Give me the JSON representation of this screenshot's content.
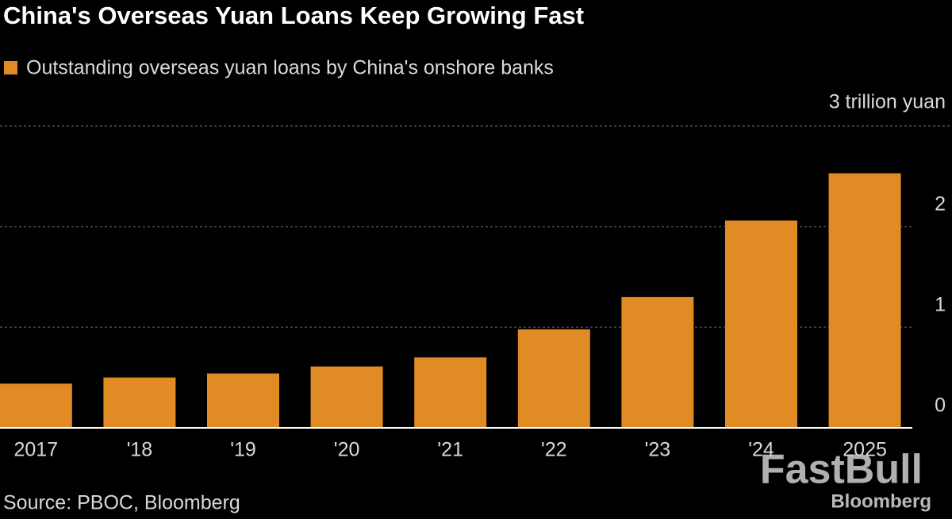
{
  "chart_data": {
    "type": "bar",
    "title": "China's Overseas Yuan Loans Keep Growing Fast",
    "categories": [
      "2017",
      "'18",
      "'19",
      "'20",
      "'21",
      "'22",
      "'23",
      "'24",
      "2025"
    ],
    "series": [
      {
        "name": "Outstanding overseas yuan loans by China's onshore banks",
        "color": "#e08b24",
        "values": [
          0.44,
          0.5,
          0.54,
          0.61,
          0.7,
          0.98,
          1.3,
          2.06,
          2.53
        ]
      }
    ],
    "ylim": [
      0,
      3
    ],
    "yticks": [
      0,
      1,
      2,
      {
        "value": 3,
        "label": "3 trillion yuan"
      }
    ],
    "grid": true,
    "source": "Source: PBOC, Bloomberg",
    "watermark": [
      "FastBull",
      "Bloomberg"
    ]
  }
}
